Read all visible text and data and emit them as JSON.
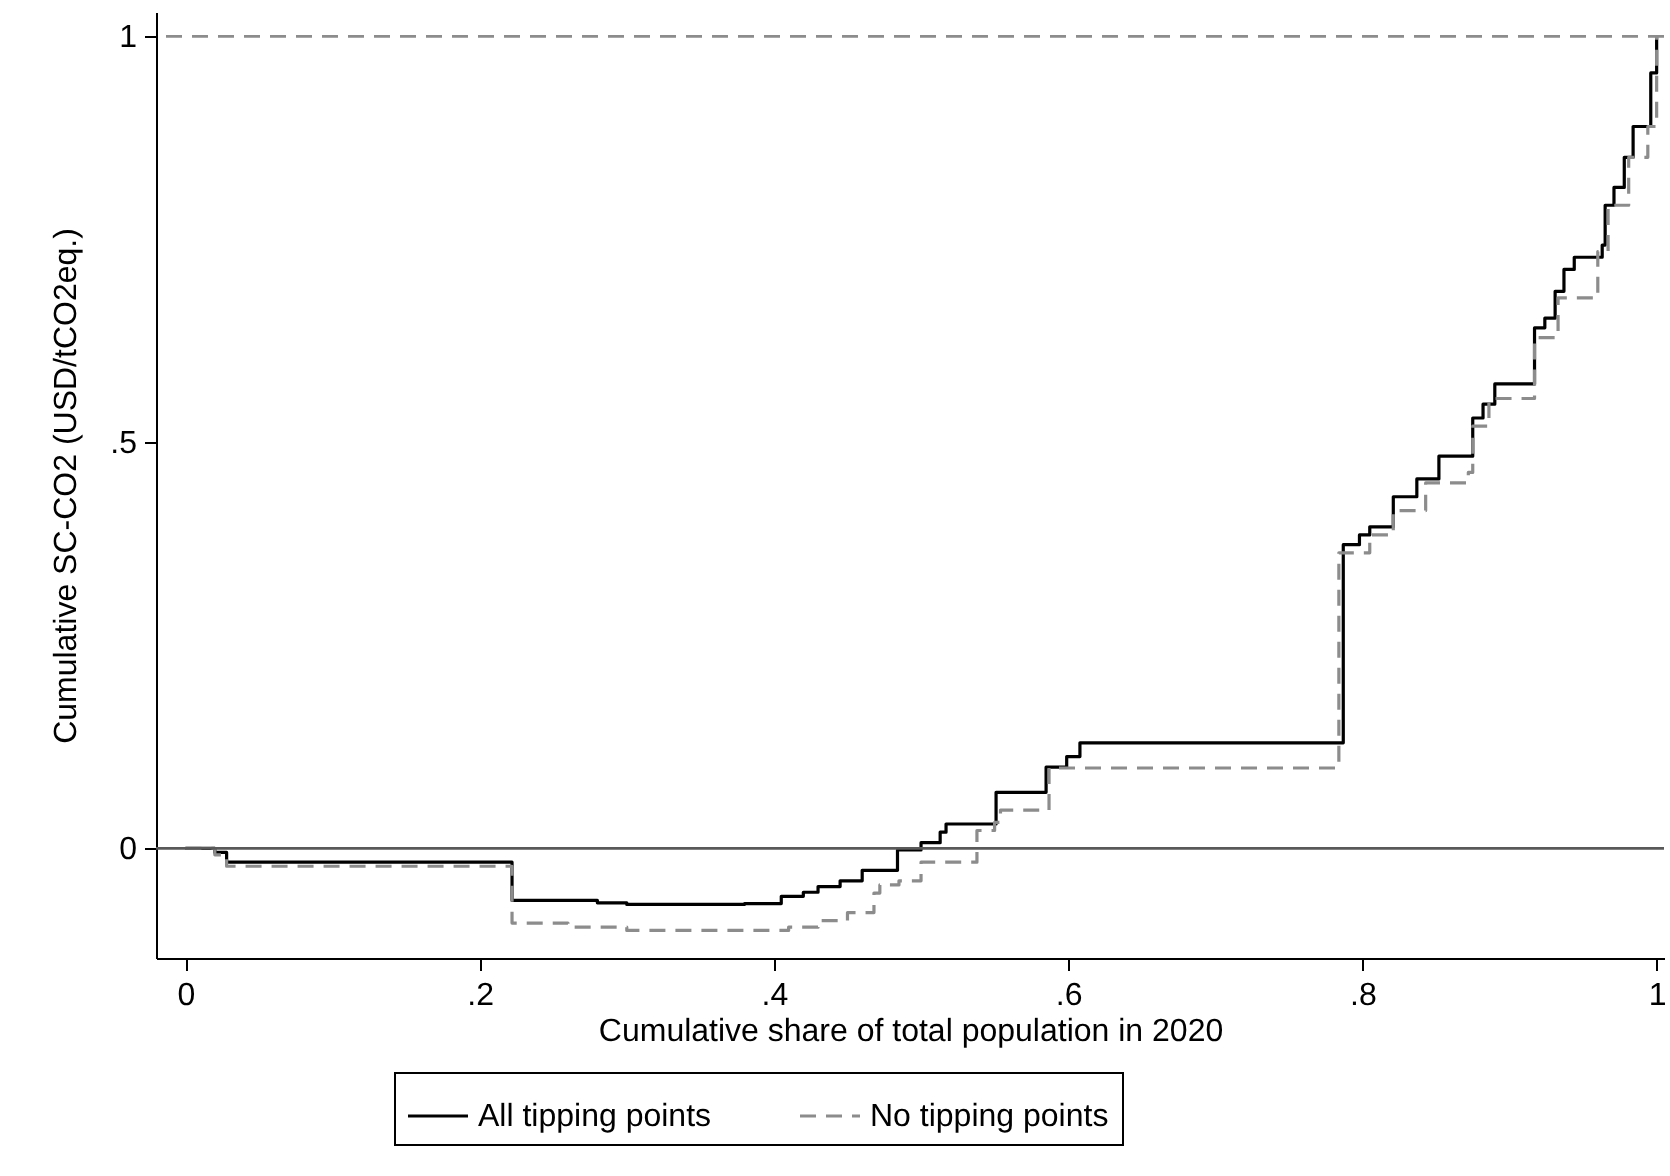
{
  "chart_data": {
    "type": "step",
    "xlabel": "Cumulative share of total population in 2020",
    "ylabel": "Cumulative SC-CO2 (USD/tCO2eq.)",
    "xlim": [
      -0.02,
      1.005
    ],
    "ylim": [
      -0.135,
      1.03
    ],
    "xticks": [
      0,
      {
        "value": 0.2,
        "label": ".2"
      },
      {
        "value": 0.4,
        "label": ".4"
      },
      {
        "value": 0.6,
        "label": ".6"
      },
      {
        "value": 0.8,
        "label": ".8"
      },
      1
    ],
    "yticks": [
      0,
      {
        "value": 0.5,
        "label": ".5"
      },
      1
    ],
    "grid": false,
    "legend": "bottom",
    "ref_lines": [
      {
        "axis": "y",
        "value": 0,
        "color": "#595959",
        "line_style": "solid"
      },
      {
        "axis": "y",
        "value": 1,
        "color": "#8c8c8c",
        "line_style": "dashed"
      }
    ],
    "series": [
      {
        "name": "All tipping points",
        "color": "#000000",
        "line_style": "solid",
        "x": [
          0,
          0.02,
          0.028,
          0.222,
          0.28,
          0.3,
          0.38,
          0.405,
          0.42,
          0.43,
          0.445,
          0.46,
          0.484,
          0.5,
          0.513,
          0.517,
          0.551,
          0.585,
          0.599,
          0.608,
          0.787,
          0.798,
          0.805,
          0.821,
          0.837,
          0.852,
          0.875,
          0.882,
          0.89,
          0.917,
          0.924,
          0.931,
          0.937,
          0.944,
          0.963,
          0.965,
          0.971,
          0.978,
          0.984,
          0.996,
          1.0,
          1.0
        ],
        "values": [
          0,
          -0.005,
          -0.017,
          -0.064,
          -0.067,
          -0.069,
          -0.068,
          -0.059,
          -0.054,
          -0.047,
          -0.04,
          -0.027,
          -0.002,
          0.007,
          0.02,
          0.03,
          0.069,
          0.1,
          0.113,
          0.13,
          0.374,
          0.386,
          0.396,
          0.433,
          0.455,
          0.483,
          0.53,
          0.547,
          0.572,
          0.641,
          0.653,
          0.686,
          0.713,
          0.728,
          0.743,
          0.792,
          0.814,
          0.851,
          0.889,
          0.955,
          0.98,
          1.0
        ]
      },
      {
        "name": "No tipping points",
        "color": "#8c8c8c",
        "line_style": "dashed",
        "x": [
          0,
          0.02,
          0.028,
          0.222,
          0.26,
          0.3,
          0.41,
          0.43,
          0.45,
          0.468,
          0.472,
          0.485,
          0.5,
          0.538,
          0.55,
          0.554,
          0.587,
          0.784,
          0.805,
          0.821,
          0.843,
          0.872,
          0.875,
          0.886,
          0.917,
          0.933,
          0.96,
          0.967,
          0.981,
          0.994,
          1.0,
          1.0
        ],
        "values": [
          0,
          -0.008,
          -0.022,
          -0.092,
          -0.097,
          -0.101,
          -0.097,
          -0.089,
          -0.079,
          -0.055,
          -0.045,
          -0.04,
          -0.017,
          0.022,
          0.032,
          0.047,
          0.099,
          0.364,
          0.386,
          0.416,
          0.45,
          0.463,
          0.52,
          0.554,
          0.629,
          0.678,
          0.735,
          0.792,
          0.851,
          0.889,
          0.96,
          1.0
        ]
      }
    ]
  }
}
